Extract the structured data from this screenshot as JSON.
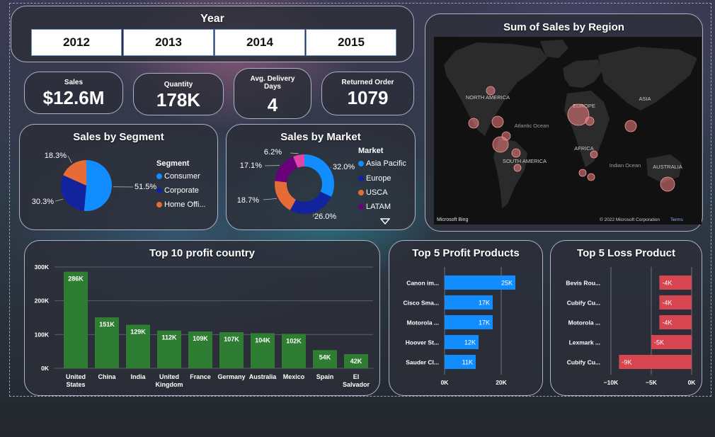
{
  "year_slicer": {
    "title": "Year",
    "years": [
      "2012",
      "2013",
      "2014",
      "2015"
    ]
  },
  "kpis": [
    {
      "label": "Sales",
      "value": "$12.6M"
    },
    {
      "label": "Quantity",
      "value": "178K"
    },
    {
      "label": "Avg. Delivery Days",
      "value": "4"
    },
    {
      "label": "Returned Order",
      "value": "1079"
    }
  ],
  "colors": {
    "blue": "#118dff",
    "dark_blue": "#12239e",
    "orange": "#e66c37",
    "purple": "#6b007b",
    "pink": "#e044a7",
    "green": "#2e7d32",
    "red": "#d64550"
  },
  "map": {
    "title": "Sum of Sales by Region",
    "labels": [
      "NORTH AMERICA",
      "Atlantic Ocean",
      "EUROPE",
      "ASIA",
      "AFRICA",
      "SOUTH AMERICA",
      "Indian Ocean",
      "AUSTRALIA"
    ],
    "attribution_left": "Microsoft Bing",
    "attribution_right": "© 2022 Microsoft Corporation",
    "terms": "Terms"
  },
  "chart_data": [
    {
      "id": "segment",
      "type": "pie",
      "title": "Sales by Segment",
      "legend_title": "Segment",
      "categories": [
        "Consumer",
        "Corporate",
        "Home Offi..."
      ],
      "values": [
        51.5,
        30.3,
        18.3
      ],
      "labels": [
        "51.5%",
        "30.3%",
        "18.3%"
      ],
      "colors": [
        "#118dff",
        "#12239e",
        "#e66c37"
      ]
    },
    {
      "id": "market",
      "type": "pie",
      "title": "Sales by Market",
      "legend_title": "Market",
      "categories": [
        "Asia Pacific",
        "Europe",
        "USCA",
        "LATAM",
        ""
      ],
      "legend_visible": [
        "Asia Pacific",
        "Europe",
        "USCA",
        "LATAM"
      ],
      "values": [
        32.0,
        26.0,
        18.7,
        17.1,
        6.2
      ],
      "labels": [
        "32.0%",
        "26.0%",
        "18.7%",
        "17.1%",
        "6.2%"
      ],
      "colors": [
        "#118dff",
        "#12239e",
        "#e66c37",
        "#6b007b",
        "#e044a7"
      ]
    },
    {
      "id": "top_country",
      "type": "bar",
      "title": "Top 10 profit country",
      "categories": [
        "United States",
        "China",
        "India",
        "United Kingdom",
        "France",
        "Germany",
        "Australia",
        "Mexico",
        "Spain",
        "El Salvador"
      ],
      "values": [
        286,
        151,
        129,
        112,
        109,
        107,
        104,
        102,
        54,
        42
      ],
      "data_labels": [
        "286K",
        "151K",
        "129K",
        "112K",
        "109K",
        "107K",
        "104K",
        "102K",
        "54K",
        "42K"
      ],
      "y_ticks": [
        "0K",
        "100K",
        "200K",
        "300K"
      ],
      "ylim": [
        0,
        300
      ],
      "color": "#2e7d32"
    },
    {
      "id": "top_profit_products",
      "type": "bar",
      "orientation": "horizontal",
      "title": "Top 5 Profit Products",
      "categories": [
        "Canon im...",
        "Cisco Sma...",
        "Motorola ...",
        "Hoover St...",
        "Sauder Cl..."
      ],
      "values": [
        25,
        17,
        17,
        12,
        11
      ],
      "data_labels": [
        "25K",
        "17K",
        "17K",
        "12K",
        "11K"
      ],
      "x_ticks": [
        "0K",
        "20K"
      ],
      "xlim": [
        0,
        30
      ],
      "color": "#118dff"
    },
    {
      "id": "top_loss_products",
      "type": "bar",
      "orientation": "horizontal",
      "title": "Top 5 Loss Product",
      "categories": [
        "Bevis Rou...",
        "Cubify Cu...",
        "Motorola ...",
        "Lexmark ...",
        "Cubify Cu..."
      ],
      "values": [
        -4,
        -4,
        -4,
        -5,
        -9
      ],
      "data_labels": [
        "-4K",
        "-4K",
        "-4K",
        "-5K",
        "-9K"
      ],
      "x_ticks": [
        "−10K",
        "−5K",
        "0K"
      ],
      "xlim": [
        -10,
        0
      ],
      "color": "#d64550"
    }
  ]
}
